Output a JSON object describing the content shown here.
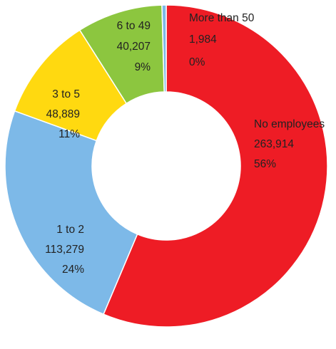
{
  "chart_data": {
    "type": "pie",
    "donut": true,
    "title": "",
    "categories": [
      "No employees",
      "1 to 2",
      "3 to 5",
      "6 to 49",
      "More than 50"
    ],
    "values": [
      263914,
      113279,
      48889,
      40207,
      1984
    ],
    "value_labels": [
      "263,914",
      "113,279",
      "48,889",
      "40,207",
      "1,984"
    ],
    "percent_labels": [
      "56%",
      "24%",
      "11%",
      "9%",
      "0%"
    ],
    "colors": [
      "#ee1c25",
      "#7db9e8",
      "#ffd910",
      "#8cc63f",
      "#7db9e8"
    ],
    "legend": "none",
    "start_angle": "top, clockwise"
  }
}
